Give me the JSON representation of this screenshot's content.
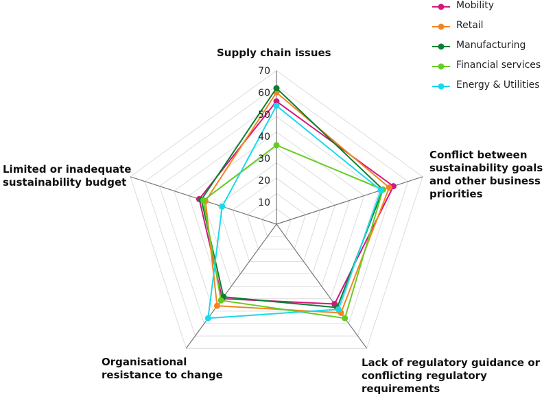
{
  "chart_data": {
    "type": "radar",
    "axes": [
      "Supply chain issues",
      "Conflict between sustainability goals and other business priorities",
      "Lack of regulatory guidance or conflicting regulatory requirements",
      "Organisational resistance to change",
      "Limited or inadequate sustainability budget"
    ],
    "axis_titles": {
      "supply": "Supply chain issues",
      "conflict": [
        "Conflict between",
        "sustainability goals",
        "and other business",
        "priorities"
      ],
      "regulatory": [
        "Lack of regulatory guidance or",
        "conflicting regulatory",
        "requirements"
      ],
      "resistance": [
        "Organisational",
        "resistance to change"
      ],
      "budget": [
        "Limited or inadequate",
        "sustainability budget"
      ]
    },
    "radial_ticks": [
      "10",
      "20",
      "30",
      "40",
      "50",
      "60",
      "70"
    ],
    "rmax": 70,
    "grid_rings": 10,
    "series": [
      {
        "name": "Mobility",
        "color": "#d4177f",
        "values": [
          56,
          56,
          45,
          42,
          37
        ]
      },
      {
        "name": "Retail",
        "color": "#f5841f",
        "values": [
          60,
          54,
          50,
          46,
          34
        ]
      },
      {
        "name": "Manufacturing",
        "color": "#0d7f33",
        "values": [
          62,
          51,
          47,
          41,
          36
        ]
      },
      {
        "name": "Financial services",
        "color": "#66cc22",
        "values": [
          36,
          51,
          53,
          43,
          35
        ]
      },
      {
        "name": "Energy & Utilities",
        "color": "#19d9ec",
        "values": [
          54,
          50,
          48,
          53,
          26
        ]
      }
    ]
  }
}
